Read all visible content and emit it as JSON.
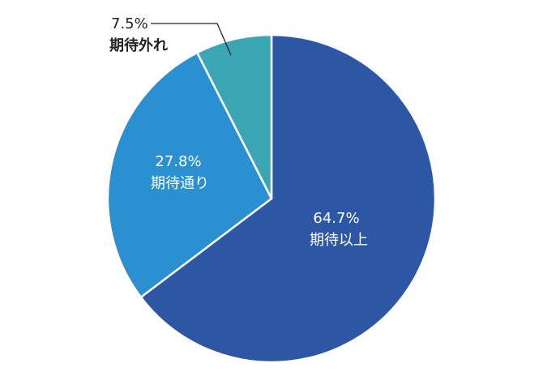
{
  "chart_data": {
    "type": "pie",
    "start": "top",
    "direction": "clockwise",
    "slices": [
      {
        "label": "期待以上",
        "value": 64.7,
        "display": "64.7%",
        "color": "#2d57a5",
        "label_color": "#ffffff",
        "label_position": "inside"
      },
      {
        "label": "期待通り",
        "value": 27.8,
        "display": "27.8%",
        "color": "#2a90d2",
        "label_color": "#ffffff",
        "label_position": "inside"
      },
      {
        "label": "期待外れ",
        "value": 7.5,
        "display": "7.5%",
        "color": "#3aa6b4",
        "label_color": "#222222",
        "label_position": "outside-leader"
      }
    ]
  }
}
